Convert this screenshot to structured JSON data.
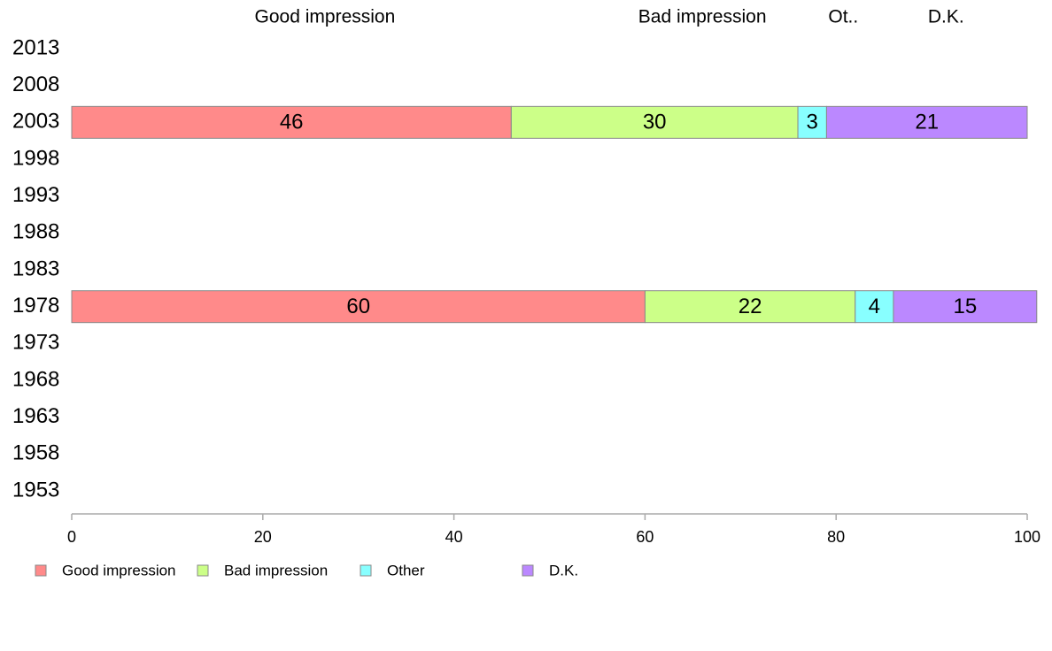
{
  "chart_data": {
    "type": "bar",
    "orientation": "horizontal",
    "stacked": true,
    "categories": [
      "2013",
      "2008",
      "2003",
      "1998",
      "1993",
      "1988",
      "1983",
      "1978",
      "1973",
      "1968",
      "1963",
      "1958",
      "1953"
    ],
    "series": [
      {
        "name": "Good impression",
        "top_label": "Good impression",
        "color": "#ff8a8a",
        "values": [
          null,
          null,
          46,
          null,
          null,
          null,
          null,
          60,
          null,
          null,
          null,
          null,
          null
        ]
      },
      {
        "name": "Bad impression",
        "top_label": "Bad impression",
        "color": "#ccff88",
        "values": [
          null,
          null,
          30,
          null,
          null,
          null,
          null,
          22,
          null,
          null,
          null,
          null,
          null
        ]
      },
      {
        "name": "Other",
        "top_label": "Ot..",
        "color": "#88ffff",
        "values": [
          null,
          null,
          3,
          null,
          null,
          null,
          null,
          4,
          null,
          null,
          null,
          null,
          null
        ]
      },
      {
        "name": "D.K.",
        "top_label": "D.K.",
        "color": "#bb88ff",
        "values": [
          null,
          null,
          21,
          null,
          null,
          null,
          null,
          15,
          null,
          null,
          null,
          null,
          null
        ]
      }
    ],
    "xlim": [
      0,
      100
    ],
    "xticks": [
      0,
      20,
      40,
      60,
      80,
      100
    ],
    "title": "",
    "xlabel": "",
    "ylabel": "",
    "grid": false,
    "legend_position": "bottom-left"
  }
}
